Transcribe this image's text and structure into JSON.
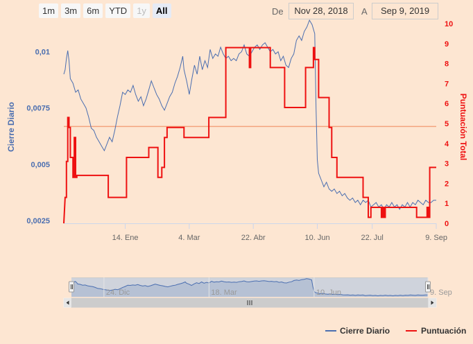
{
  "range_selector": {
    "buttons": [
      {
        "label": "1m",
        "state": "normal"
      },
      {
        "label": "3m",
        "state": "normal"
      },
      {
        "label": "6m",
        "state": "normal"
      },
      {
        "label": "YTD",
        "state": "normal"
      },
      {
        "label": "1y",
        "state": "disabled"
      },
      {
        "label": "All",
        "state": "active"
      }
    ],
    "from_label": "De",
    "from_value": "Nov 28, 2018",
    "to_label": "A",
    "to_value": "Sep 9, 2019"
  },
  "colors": {
    "background": "#fde6d2",
    "series1": "#4a6eb0",
    "series2": "#ee1111",
    "plotline": "#f3a37e",
    "left_axis": "#4a6eb0",
    "right_axis": "#ee1111"
  },
  "chart_data": {
    "type": "line",
    "x_start": "2018-11-28",
    "x_end": "2019-09-09",
    "x_ticks": [
      {
        "date": "2019-01-14",
        "label": "14. Ene"
      },
      {
        "date": "2019-03-04",
        "label": "4. Mar"
      },
      {
        "date": "2019-04-22",
        "label": "22. Abr"
      },
      {
        "date": "2019-06-10",
        "label": "10. Jun"
      },
      {
        "date": "2019-07-22",
        "label": "22. Jul"
      },
      {
        "date": "2019-09-09",
        "label": "9. Sep"
      }
    ],
    "left_axis": {
      "label": "Cierre Diario",
      "range": [
        0.002375,
        0.01125
      ],
      "ticks": [
        "0,0025",
        "0,005",
        "0,0075",
        "0,01"
      ],
      "tick_values": [
        0.0025,
        0.005,
        0.0075,
        0.01
      ]
    },
    "right_axis": {
      "label": "Puntuación Total",
      "range": [
        0,
        10
      ],
      "ticks": [
        "0",
        "1",
        "2",
        "3",
        "4",
        "5",
        "6",
        "7",
        "8",
        "9",
        "10"
      ]
    },
    "plot_line_right_value": 4.85,
    "series": [
      {
        "name": "Cierre Diario",
        "axis": "left",
        "points": [
          [
            "2018-11-28",
            0.009
          ],
          [
            "2018-11-29",
            0.0092
          ],
          [
            "2018-11-30",
            0.0097
          ],
          [
            "2018-12-01",
            0.01005
          ],
          [
            "2018-12-02",
            0.0096
          ],
          [
            "2018-12-03",
            0.0088
          ],
          [
            "2018-12-05",
            0.0086
          ],
          [
            "2018-12-07",
            0.0082
          ],
          [
            "2018-12-09",
            0.0083
          ],
          [
            "2018-12-11",
            0.0079
          ],
          [
            "2018-12-13",
            0.0077
          ],
          [
            "2018-12-15",
            0.0075
          ],
          [
            "2018-12-17",
            0.0071
          ],
          [
            "2018-12-19",
            0.0066
          ],
          [
            "2018-12-21",
            0.0065
          ],
          [
            "2018-12-23",
            0.0062
          ],
          [
            "2018-12-25",
            0.006
          ],
          [
            "2018-12-27",
            0.0058
          ],
          [
            "2018-12-29",
            0.0056
          ],
          [
            "2018-12-31",
            0.0059
          ],
          [
            "2019-01-02",
            0.0062
          ],
          [
            "2019-01-04",
            0.006
          ],
          [
            "2019-01-06",
            0.0065
          ],
          [
            "2019-01-08",
            0.0071
          ],
          [
            "2019-01-10",
            0.0076
          ],
          [
            "2019-01-12",
            0.0082
          ],
          [
            "2019-01-14",
            0.0081
          ],
          [
            "2019-01-16",
            0.0083
          ],
          [
            "2019-01-18",
            0.0082
          ],
          [
            "2019-01-20",
            0.0085
          ],
          [
            "2019-01-22",
            0.0081
          ],
          [
            "2019-01-24",
            0.0078
          ],
          [
            "2019-01-26",
            0.008
          ],
          [
            "2019-01-28",
            0.0076
          ],
          [
            "2019-01-30",
            0.0079
          ],
          [
            "2019-02-01",
            0.0083
          ],
          [
            "2019-02-03",
            0.0087
          ],
          [
            "2019-02-05",
            0.0084
          ],
          [
            "2019-02-07",
            0.0081
          ],
          [
            "2019-02-09",
            0.0079
          ],
          [
            "2019-02-11",
            0.0076
          ],
          [
            "2019-02-13",
            0.0074
          ],
          [
            "2019-02-15",
            0.0077
          ],
          [
            "2019-02-17",
            0.008
          ],
          [
            "2019-02-19",
            0.0082
          ],
          [
            "2019-02-21",
            0.0086
          ],
          [
            "2019-02-23",
            0.0089
          ],
          [
            "2019-02-25",
            0.0093
          ],
          [
            "2019-02-27",
            0.0098
          ],
          [
            "2019-02-28",
            0.0092
          ],
          [
            "2019-03-02",
            0.0087
          ],
          [
            "2019-03-04",
            0.0081
          ],
          [
            "2019-03-06",
            0.0088
          ],
          [
            "2019-03-08",
            0.0094
          ],
          [
            "2019-03-10",
            0.009
          ],
          [
            "2019-03-12",
            0.0098
          ],
          [
            "2019-03-14",
            0.0092
          ],
          [
            "2019-03-16",
            0.0096
          ],
          [
            "2019-03-18",
            0.0093
          ],
          [
            "2019-03-20",
            0.0101
          ],
          [
            "2019-03-22",
            0.0097
          ],
          [
            "2019-03-24",
            0.0099
          ],
          [
            "2019-03-26",
            0.0098
          ],
          [
            "2019-03-28",
            0.0102
          ],
          [
            "2019-03-30",
            0.0099
          ],
          [
            "2019-04-01",
            0.0097
          ],
          [
            "2019-04-03",
            0.0098
          ],
          [
            "2019-04-05",
            0.0096
          ],
          [
            "2019-04-07",
            0.0097
          ],
          [
            "2019-04-09",
            0.0096
          ],
          [
            "2019-04-11",
            0.0099
          ],
          [
            "2019-04-13",
            0.01
          ],
          [
            "2019-04-15",
            0.0103
          ],
          [
            "2019-04-17",
            0.0099
          ],
          [
            "2019-04-19",
            0.0098
          ],
          [
            "2019-04-21",
            0.01
          ],
          [
            "2019-04-23",
            0.0102
          ],
          [
            "2019-04-25",
            0.0103
          ],
          [
            "2019-04-27",
            0.0101
          ],
          [
            "2019-04-29",
            0.0103
          ],
          [
            "2019-05-01",
            0.0104
          ],
          [
            "2019-05-03",
            0.0102
          ],
          [
            "2019-05-05",
            0.01
          ],
          [
            "2019-05-07",
            0.0101
          ],
          [
            "2019-05-09",
            0.0099
          ],
          [
            "2019-05-11",
            0.01
          ],
          [
            "2019-05-13",
            0.0096
          ],
          [
            "2019-05-15",
            0.0098
          ],
          [
            "2019-05-17",
            0.0094
          ],
          [
            "2019-05-19",
            0.0093
          ],
          [
            "2019-05-21",
            0.0097
          ],
          [
            "2019-05-23",
            0.0099
          ],
          [
            "2019-05-25",
            0.0105
          ],
          [
            "2019-05-27",
            0.0107
          ],
          [
            "2019-05-29",
            0.0105
          ],
          [
            "2019-05-31",
            0.0109
          ],
          [
            "2019-06-02",
            0.0111
          ],
          [
            "2019-06-04",
            0.0114
          ],
          [
            "2019-06-06",
            0.0112
          ],
          [
            "2019-06-08",
            0.0108
          ],
          [
            "2019-06-09",
            0.0075
          ],
          [
            "2019-06-10",
            0.0052
          ],
          [
            "2019-06-11",
            0.0046
          ],
          [
            "2019-06-13",
            0.0043
          ],
          [
            "2019-06-15",
            0.004
          ],
          [
            "2019-06-17",
            0.0042
          ],
          [
            "2019-06-19",
            0.0039
          ],
          [
            "2019-06-21",
            0.0038
          ],
          [
            "2019-06-23",
            0.0039
          ],
          [
            "2019-06-25",
            0.0037
          ],
          [
            "2019-06-27",
            0.0038
          ],
          [
            "2019-06-29",
            0.0036
          ],
          [
            "2019-07-01",
            0.0037
          ],
          [
            "2019-07-03",
            0.0035
          ],
          [
            "2019-07-05",
            0.0034
          ],
          [
            "2019-07-07",
            0.0035
          ],
          [
            "2019-07-09",
            0.0033
          ],
          [
            "2019-07-11",
            0.0034
          ],
          [
            "2019-07-13",
            0.0032
          ],
          [
            "2019-07-15",
            0.0034
          ],
          [
            "2019-07-17",
            0.0033
          ],
          [
            "2019-07-19",
            0.0034
          ],
          [
            "2019-07-21",
            0.0031
          ],
          [
            "2019-07-23",
            0.0032
          ],
          [
            "2019-07-25",
            0.0033
          ],
          [
            "2019-07-27",
            0.0031
          ],
          [
            "2019-07-29",
            0.0032
          ],
          [
            "2019-07-31",
            0.003
          ],
          [
            "2019-08-02",
            0.0032
          ],
          [
            "2019-08-04",
            0.0031
          ],
          [
            "2019-08-06",
            0.0033
          ],
          [
            "2019-08-08",
            0.0031
          ],
          [
            "2019-08-10",
            0.0032
          ],
          [
            "2019-08-12",
            0.003
          ],
          [
            "2019-08-14",
            0.0032
          ],
          [
            "2019-08-16",
            0.0031
          ],
          [
            "2019-08-18",
            0.0033
          ],
          [
            "2019-08-20",
            0.0031
          ],
          [
            "2019-08-22",
            0.0033
          ],
          [
            "2019-08-24",
            0.0032
          ],
          [
            "2019-08-26",
            0.0034
          ],
          [
            "2019-08-28",
            0.0033
          ],
          [
            "2019-08-30",
            0.0032
          ],
          [
            "2019-09-01",
            0.0034
          ],
          [
            "2019-09-03",
            0.0033
          ],
          [
            "2019-09-05",
            0.0033
          ],
          [
            "2019-09-07",
            0.0034
          ],
          [
            "2019-09-09",
            0.0034
          ]
        ]
      },
      {
        "name": "Puntuación",
        "axis": "right",
        "points": [
          [
            "2018-11-28",
            0
          ],
          [
            "2018-11-29",
            1.3
          ],
          [
            "2018-11-30",
            1.3
          ],
          [
            "2018-11-30",
            3.1
          ],
          [
            "2018-12-01",
            3.1
          ],
          [
            "2018-12-01",
            5.3
          ],
          [
            "2018-12-02",
            5.3
          ],
          [
            "2018-12-02",
            4.8
          ],
          [
            "2018-12-03",
            4.8
          ],
          [
            "2018-12-03",
            3.3
          ],
          [
            "2018-12-05",
            3.3
          ],
          [
            "2018-12-05",
            2.3
          ],
          [
            "2018-12-06",
            2.3
          ],
          [
            "2018-12-06",
            4.3
          ],
          [
            "2018-12-07",
            4.3
          ],
          [
            "2018-12-07",
            2.3
          ],
          [
            "2018-12-08",
            2.3
          ],
          [
            "2018-12-08",
            2.4
          ],
          [
            "2019-01-01",
            2.4
          ],
          [
            "2019-01-01",
            1.3
          ],
          [
            "2019-01-15",
            1.3
          ],
          [
            "2019-01-15",
            3.3
          ],
          [
            "2019-02-01",
            3.3
          ],
          [
            "2019-02-01",
            3.8
          ],
          [
            "2019-02-08",
            3.8
          ],
          [
            "2019-02-08",
            2.3
          ],
          [
            "2019-02-11",
            2.3
          ],
          [
            "2019-02-11",
            2.8
          ],
          [
            "2019-02-13",
            2.8
          ],
          [
            "2019-02-13",
            4.3
          ],
          [
            "2019-02-15",
            4.3
          ],
          [
            "2019-02-15",
            4.8
          ],
          [
            "2019-02-28",
            4.8
          ],
          [
            "2019-02-28",
            4.3
          ],
          [
            "2019-03-19",
            4.3
          ],
          [
            "2019-03-19",
            5.3
          ],
          [
            "2019-04-01",
            5.3
          ],
          [
            "2019-04-01",
            8.8
          ],
          [
            "2019-04-19",
            8.8
          ],
          [
            "2019-04-19",
            7.8
          ],
          [
            "2019-04-20",
            7.8
          ],
          [
            "2019-04-20",
            8.8
          ],
          [
            "2019-05-05",
            8.8
          ],
          [
            "2019-05-05",
            7.8
          ],
          [
            "2019-05-16",
            7.8
          ],
          [
            "2019-05-16",
            5.8
          ],
          [
            "2019-06-01",
            5.8
          ],
          [
            "2019-06-01",
            7.8
          ],
          [
            "2019-06-07",
            7.8
          ],
          [
            "2019-06-07",
            8.8
          ],
          [
            "2019-06-08",
            8.8
          ],
          [
            "2019-06-08",
            8.2
          ],
          [
            "2019-06-11",
            8.2
          ],
          [
            "2019-06-11",
            6.3
          ],
          [
            "2019-06-19",
            6.3
          ],
          [
            "2019-06-19",
            4.8
          ],
          [
            "2019-06-21",
            4.8
          ],
          [
            "2019-06-21",
            3.3
          ],
          [
            "2019-06-25",
            3.3
          ],
          [
            "2019-06-25",
            2.3
          ],
          [
            "2019-07-15",
            2.3
          ],
          [
            "2019-07-15",
            1.3
          ],
          [
            "2019-07-19",
            1.3
          ],
          [
            "2019-07-19",
            0.3
          ],
          [
            "2019-07-21",
            0.3
          ],
          [
            "2019-07-21",
            0.8
          ],
          [
            "2019-07-29",
            0.8
          ],
          [
            "2019-07-29",
            0.3
          ],
          [
            "2019-07-30",
            0.3
          ],
          [
            "2019-07-30",
            0.8
          ],
          [
            "2019-07-31",
            0.8
          ],
          [
            "2019-07-31",
            0.3
          ],
          [
            "2019-08-01",
            0.3
          ],
          [
            "2019-08-01",
            0.8
          ],
          [
            "2019-08-25",
            0.8
          ],
          [
            "2019-08-25",
            0.3
          ],
          [
            "2019-09-02",
            0.3
          ],
          [
            "2019-09-02",
            0.8
          ],
          [
            "2019-09-03",
            0.8
          ],
          [
            "2019-09-03",
            0.3
          ],
          [
            "2019-09-04",
            0.3
          ],
          [
            "2019-09-04",
            2.8
          ],
          [
            "2019-09-09",
            2.8
          ]
        ]
      }
    ],
    "navigator": {
      "x_ticks": [
        {
          "date": "2018-12-24",
          "label": "24. Dic"
        },
        {
          "date": "2019-03-18",
          "label": "18. Mar"
        },
        {
          "date": "2019-06-10",
          "label": "10. Jun"
        },
        {
          "date": "2019-09-09",
          "label": "9. Sep"
        }
      ]
    },
    "legend": {
      "position": "bottom-right",
      "items": [
        "Cierre Diario",
        "Puntuación"
      ]
    }
  }
}
